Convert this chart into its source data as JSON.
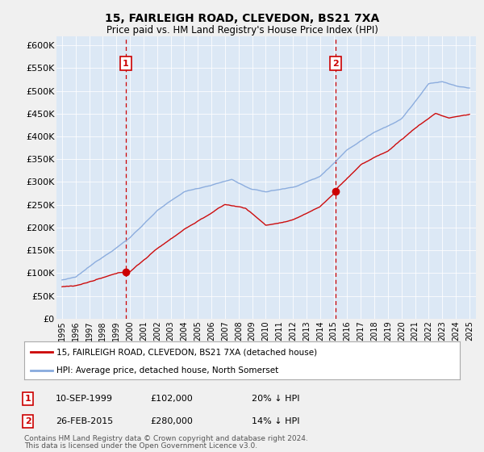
{
  "title": "15, FAIRLEIGH ROAD, CLEVEDON, BS21 7XA",
  "subtitle": "Price paid vs. HM Land Registry's House Price Index (HPI)",
  "background_color": "#f0f0f0",
  "plot_bg_color": "#dce8f5",
  "ylim": [
    0,
    620000
  ],
  "yticks": [
    0,
    50000,
    100000,
    150000,
    200000,
    250000,
    300000,
    350000,
    400000,
    450000,
    500000,
    550000,
    600000
  ],
  "ytick_labels": [
    "£0",
    "£50K",
    "£100K",
    "£150K",
    "£200K",
    "£250K",
    "£300K",
    "£350K",
    "£400K",
    "£450K",
    "£500K",
    "£550K",
    "£600K"
  ],
  "sale1_date": "10-SEP-1999",
  "sale1_price": 102000,
  "sale1_label": "20% ↓ HPI",
  "sale1_x": 1999.7,
  "sale2_date": "26-FEB-2015",
  "sale2_price": 280000,
  "sale2_label": "14% ↓ HPI",
  "sale2_x": 2015.15,
  "legend_house_label": "15, FAIRLEIGH ROAD, CLEVEDON, BS21 7XA (detached house)",
  "legend_hpi_label": "HPI: Average price, detached house, North Somerset",
  "house_line_color": "#cc0000",
  "hpi_line_color": "#88aadd",
  "vline_color": "#cc0000",
  "annotation_box_color": "#cc0000",
  "footnote1": "Contains HM Land Registry data © Crown copyright and database right 2024.",
  "footnote2": "This data is licensed under the Open Government Licence v3.0."
}
